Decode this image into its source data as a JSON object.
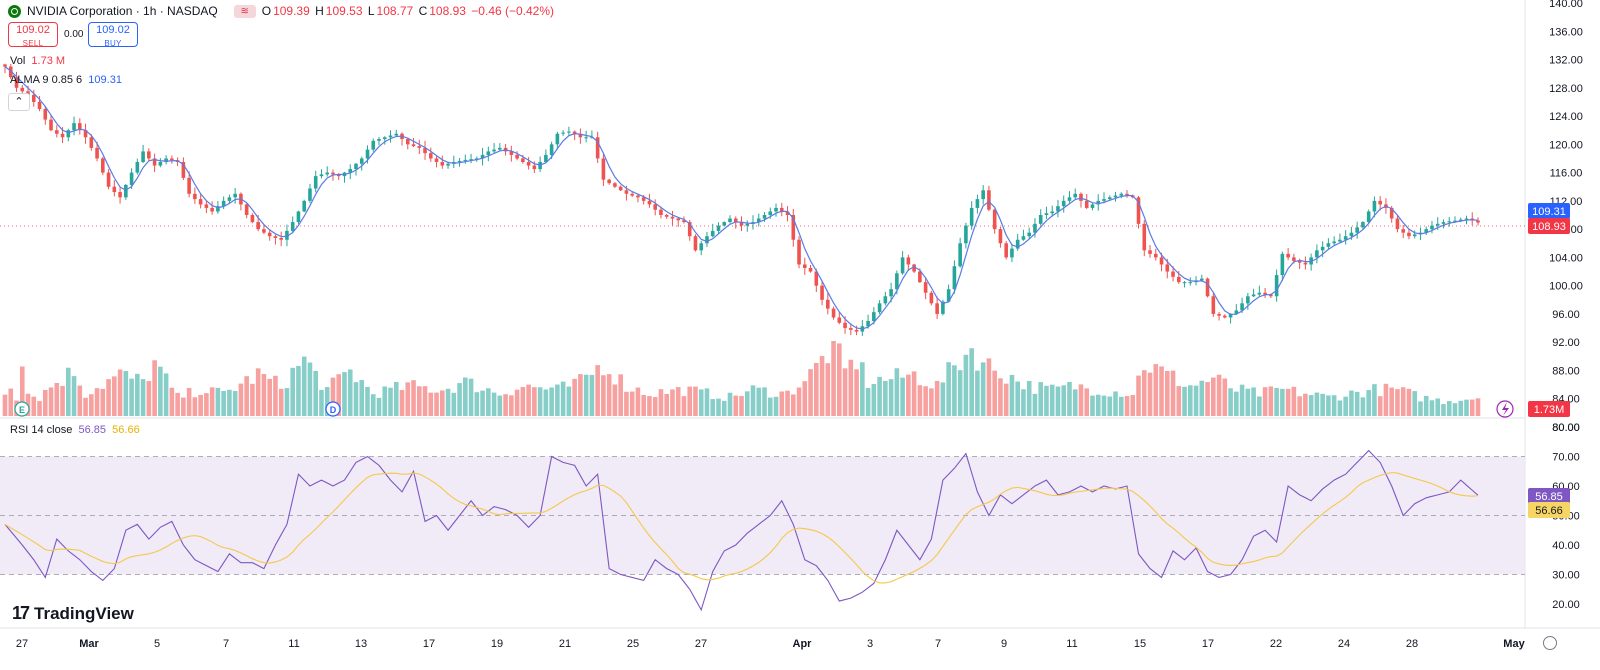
{
  "header": {
    "symbol": "NVIDIA Corporation · 1h · NASDAQ",
    "open_label": "O",
    "open": "109.39",
    "high_label": "H",
    "high": "109.53",
    "low_label": "L",
    "low": "108.77",
    "close_label": "C",
    "close": "108.93",
    "change": "−0.46 (−0.42%)"
  },
  "trade": {
    "sell_price": "109.02",
    "sell_label": "SELL",
    "spread": "0.00",
    "buy_price": "109.02",
    "buy_label": "BUY"
  },
  "volume_legend": {
    "label": "Vol",
    "value": "1.73 M"
  },
  "alma_legend": {
    "label": "ALMA 9 0.85 6",
    "value": "109.31"
  },
  "rsi_legend": {
    "label": "RSI 14 close",
    "value": "56.85",
    "ma_value": "56.66"
  },
  "branding": {
    "name": "TradingView"
  },
  "chart_data": {
    "type": "candlestick",
    "x_ticks": [
      "27",
      "Mar",
      "5",
      "7",
      "11",
      "13",
      "17",
      "19",
      "21",
      "25",
      "27",
      "Apr",
      "3",
      "7",
      "9",
      "11",
      "15",
      "17",
      "22",
      "24",
      "28",
      "May"
    ],
    "price_axis": {
      "ticks": [
        "140.00",
        "136.00",
        "132.00",
        "128.00",
        "124.00",
        "120.00",
        "116.00",
        "112.00",
        "108.00",
        "104.00",
        "100.00",
        "96.00",
        "92.00",
        "88.00",
        "84.00",
        "80.00"
      ],
      "ylim": [
        80,
        140
      ]
    },
    "rsi_axis": {
      "ticks": [
        "80.00",
        "70.00",
        "60.00",
        "50.00",
        "40.00",
        "30.00",
        "20.00"
      ],
      "ylim": [
        15,
        85
      ]
    },
    "price_labels": {
      "alma": "109.31",
      "last": "108.93",
      "volume": "1.73M"
    },
    "rsi_labels": {
      "rsi": "56.85",
      "ma": "56.66"
    },
    "event_markers": [
      "E",
      "D"
    ],
    "close_waypoints": [
      [
        0,
        131
      ],
      [
        2,
        128
      ],
      [
        4,
        127
      ],
      [
        6,
        125
      ],
      [
        8,
        122
      ],
      [
        10,
        121
      ],
      [
        12,
        123
      ],
      [
        14,
        121
      ],
      [
        16,
        118
      ],
      [
        18,
        114
      ],
      [
        20,
        112.5
      ],
      [
        22,
        116
      ],
      [
        24,
        119
      ],
      [
        26,
        117
      ],
      [
        28,
        118
      ],
      [
        30,
        117.5
      ],
      [
        32,
        113
      ],
      [
        34,
        111.5
      ],
      [
        36,
        110.5
      ],
      [
        38,
        112
      ],
      [
        40,
        113
      ],
      [
        42,
        110
      ],
      [
        44,
        108
      ],
      [
        46,
        107
      ],
      [
        48,
        106.5
      ],
      [
        50,
        109
      ],
      [
        52,
        112
      ],
      [
        54,
        115.5
      ],
      [
        56,
        116
      ],
      [
        58,
        115.5
      ],
      [
        60,
        116.5
      ],
      [
        62,
        118
      ],
      [
        64,
        120.5
      ],
      [
        66,
        121
      ],
      [
        68,
        121.5
      ],
      [
        70,
        120
      ],
      [
        72,
        119.5
      ],
      [
        74,
        118
      ],
      [
        76,
        117
      ],
      [
        78,
        117.5
      ],
      [
        80,
        117.8
      ],
      [
        82,
        118
      ],
      [
        84,
        119
      ],
      [
        86,
        119.5
      ],
      [
        88,
        118.5
      ],
      [
        90,
        117.5
      ],
      [
        92,
        116.5
      ],
      [
        94,
        118.5
      ],
      [
        96,
        121.5
      ],
      [
        98,
        121.8
      ],
      [
        100,
        121
      ],
      [
        102,
        121
      ],
      [
        104,
        115
      ],
      [
        106,
        114
      ],
      [
        108,
        113
      ],
      [
        110,
        112.5
      ],
      [
        112,
        111.5
      ],
      [
        114,
        110
      ],
      [
        116,
        109.5
      ],
      [
        118,
        109
      ],
      [
        120,
        105
      ],
      [
        122,
        107
      ],
      [
        124,
        108.5
      ],
      [
        126,
        109.5
      ],
      [
        128,
        108.5
      ],
      [
        130,
        109
      ],
      [
        132,
        110
      ],
      [
        134,
        111
      ],
      [
        136,
        110
      ],
      [
        138,
        103
      ],
      [
        140,
        102
      ],
      [
        142,
        98
      ],
      [
        144,
        95.5
      ],
      [
        146,
        94
      ],
      [
        148,
        93.5
      ],
      [
        150,
        95
      ],
      [
        152,
        97.5
      ],
      [
        154,
        99.5
      ],
      [
        156,
        104
      ],
      [
        158,
        102
      ],
      [
        160,
        99
      ],
      [
        162,
        96
      ],
      [
        164,
        99.5
      ],
      [
        166,
        106
      ],
      [
        168,
        111
      ],
      [
        170,
        113.5
      ],
      [
        172,
        108
      ],
      [
        174,
        104
      ],
      [
        176,
        106.5
      ],
      [
        178,
        107.5
      ],
      [
        180,
        110
      ],
      [
        182,
        110.5
      ],
      [
        184,
        112
      ],
      [
        186,
        113
      ],
      [
        188,
        111
      ],
      [
        190,
        112
      ],
      [
        192,
        112.5
      ],
      [
        194,
        113
      ],
      [
        196,
        112.5
      ],
      [
        198,
        105
      ],
      [
        200,
        104
      ],
      [
        202,
        102
      ],
      [
        204,
        100.5
      ],
      [
        206,
        100.5
      ],
      [
        208,
        101
      ],
      [
        210,
        96
      ],
      [
        212,
        95.5
      ],
      [
        214,
        96.5
      ],
      [
        216,
        98.5
      ],
      [
        218,
        99
      ],
      [
        220,
        98.5
      ],
      [
        222,
        104.5
      ],
      [
        224,
        103.5
      ],
      [
        226,
        103
      ],
      [
        228,
        105
      ],
      [
        230,
        106
      ],
      [
        232,
        106.5
      ],
      [
        234,
        107.5
      ],
      [
        236,
        109
      ],
      [
        238,
        112
      ],
      [
        240,
        111
      ],
      [
        242,
        108
      ],
      [
        244,
        107
      ],
      [
        246,
        107.5
      ],
      [
        248,
        108.5
      ],
      [
        250,
        109
      ],
      [
        252,
        109.2
      ],
      [
        254,
        109.5
      ],
      [
        256,
        108.93
      ]
    ],
    "volume_waypoints": [
      [
        0,
        0.3
      ],
      [
        1,
        0.45
      ],
      [
        2,
        0.25
      ],
      [
        3,
        0.85
      ],
      [
        4,
        0.3
      ],
      [
        6,
        0.25
      ],
      [
        8,
        0.4
      ],
      [
        12,
        0.6
      ],
      [
        14,
        0.3
      ],
      [
        20,
        0.55
      ],
      [
        24,
        0.45
      ],
      [
        26,
        0.7
      ],
      [
        30,
        0.25
      ],
      [
        34,
        0.35
      ],
      [
        38,
        0.3
      ],
      [
        44,
        0.55
      ],
      [
        48,
        0.4
      ],
      [
        52,
        0.75
      ],
      [
        56,
        0.35
      ],
      [
        60,
        0.6
      ],
      [
        64,
        0.3
      ],
      [
        70,
        0.4
      ],
      [
        76,
        0.35
      ],
      [
        80,
        0.45
      ],
      [
        86,
        0.3
      ],
      [
        90,
        0.4
      ],
      [
        96,
        0.35
      ],
      [
        100,
        0.45
      ],
      [
        104,
        0.7
      ],
      [
        108,
        0.4
      ],
      [
        112,
        0.3
      ],
      [
        118,
        0.35
      ],
      [
        122,
        0.3
      ],
      [
        126,
        0.25
      ],
      [
        130,
        0.35
      ],
      [
        136,
        0.3
      ],
      [
        140,
        0.55
      ],
      [
        144,
        0.95
      ],
      [
        146,
        0.6
      ],
      [
        148,
        0.75
      ],
      [
        150,
        0.45
      ],
      [
        154,
        0.5
      ],
      [
        158,
        0.55
      ],
      [
        162,
        0.4
      ],
      [
        166,
        0.75
      ],
      [
        168,
        0.9
      ],
      [
        170,
        0.7
      ],
      [
        174,
        0.55
      ],
      [
        178,
        0.4
      ],
      [
        182,
        0.35
      ],
      [
        186,
        0.4
      ],
      [
        190,
        0.35
      ],
      [
        196,
        0.3
      ],
      [
        198,
        0.7
      ],
      [
        202,
        0.55
      ],
      [
        206,
        0.4
      ],
      [
        210,
        0.5
      ],
      [
        214,
        0.35
      ],
      [
        218,
        0.3
      ],
      [
        222,
        0.35
      ],
      [
        226,
        0.3
      ],
      [
        230,
        0.25
      ],
      [
        234,
        0.3
      ],
      [
        238,
        0.35
      ],
      [
        242,
        0.35
      ],
      [
        246,
        0.25
      ],
      [
        250,
        0.2
      ],
      [
        256,
        0.25
      ]
    ],
    "rsi_waypoints": [
      [
        0,
        47
      ],
      [
        3,
        40
      ],
      [
        5,
        35
      ],
      [
        7,
        29
      ],
      [
        9,
        42
      ],
      [
        11,
        38
      ],
      [
        13,
        35
      ],
      [
        15,
        31
      ],
      [
        17,
        28
      ],
      [
        19,
        32
      ],
      [
        21,
        45
      ],
      [
        23,
        47
      ],
      [
        25,
        42
      ],
      [
        27,
        46
      ],
      [
        29,
        48
      ],
      [
        31,
        40
      ],
      [
        33,
        35
      ],
      [
        35,
        33
      ],
      [
        37,
        31
      ],
      [
        39,
        37
      ],
      [
        41,
        34
      ],
      [
        43,
        34
      ],
      [
        45,
        32
      ],
      [
        47,
        40
      ],
      [
        49,
        47
      ],
      [
        51,
        64
      ],
      [
        53,
        60
      ],
      [
        55,
        62
      ],
      [
        57,
        60
      ],
      [
        59,
        62
      ],
      [
        61,
        68
      ],
      [
        63,
        70
      ],
      [
        65,
        67
      ],
      [
        67,
        62
      ],
      [
        69,
        58
      ],
      [
        71,
        65
      ],
      [
        73,
        48
      ],
      [
        75,
        50
      ],
      [
        77,
        45
      ],
      [
        79,
        50
      ],
      [
        81,
        55
      ],
      [
        83,
        50
      ],
      [
        85,
        53
      ],
      [
        87,
        52
      ],
      [
        89,
        50
      ],
      [
        91,
        46
      ],
      [
        93,
        50
      ],
      [
        95,
        70
      ],
      [
        97,
        68
      ],
      [
        99,
        67
      ],
      [
        101,
        60
      ],
      [
        103,
        64
      ],
      [
        105,
        32
      ],
      [
        107,
        30
      ],
      [
        109,
        29
      ],
      [
        111,
        28
      ],
      [
        113,
        35
      ],
      [
        115,
        32
      ],
      [
        117,
        30
      ],
      [
        119,
        25
      ],
      [
        121,
        18
      ],
      [
        123,
        31
      ],
      [
        125,
        38
      ],
      [
        127,
        40
      ],
      [
        129,
        44
      ],
      [
        131,
        47
      ],
      [
        133,
        50
      ],
      [
        135,
        55
      ],
      [
        137,
        47
      ],
      [
        139,
        35
      ],
      [
        141,
        33
      ],
      [
        143,
        28
      ],
      [
        145,
        21
      ],
      [
        147,
        22
      ],
      [
        149,
        24
      ],
      [
        151,
        27
      ],
      [
        153,
        35
      ],
      [
        155,
        45
      ],
      [
        157,
        40
      ],
      [
        159,
        35
      ],
      [
        161,
        42
      ],
      [
        163,
        62
      ],
      [
        165,
        66
      ],
      [
        167,
        71
      ],
      [
        169,
        58
      ],
      [
        171,
        50
      ],
      [
        173,
        57
      ],
      [
        175,
        54
      ],
      [
        177,
        57
      ],
      [
        179,
        60
      ],
      [
        181,
        62
      ],
      [
        183,
        57
      ],
      [
        185,
        58
      ],
      [
        187,
        60
      ],
      [
        189,
        58
      ],
      [
        191,
        60
      ],
      [
        193,
        59
      ],
      [
        195,
        60
      ],
      [
        197,
        37
      ],
      [
        199,
        32
      ],
      [
        201,
        29
      ],
      [
        203,
        38
      ],
      [
        205,
        35
      ],
      [
        207,
        39
      ],
      [
        209,
        31
      ],
      [
        211,
        29
      ],
      [
        213,
        30
      ],
      [
        215,
        35
      ],
      [
        217,
        43
      ],
      [
        219,
        45
      ],
      [
        221,
        41
      ],
      [
        223,
        60
      ],
      [
        225,
        57
      ],
      [
        227,
        55
      ],
      [
        229,
        59
      ],
      [
        231,
        62
      ],
      [
        233,
        64
      ],
      [
        235,
        68
      ],
      [
        237,
        72
      ],
      [
        239,
        68
      ],
      [
        241,
        60
      ],
      [
        243,
        50
      ],
      [
        245,
        54
      ],
      [
        247,
        56
      ],
      [
        249,
        57
      ],
      [
        251,
        58
      ],
      [
        253,
        62
      ],
      [
        256,
        56.85
      ]
    ],
    "rsi_ma_period": 14,
    "rsi_bands": {
      "upper": 70,
      "middle": 50,
      "lower": 30
    },
    "colors": {
      "up": "#26a69a",
      "down": "#ef5350",
      "alma": "#5b7be6",
      "rsi": "#7e57c2",
      "rsi_ma": "#f5c84c",
      "band_fill": "#ede7f6",
      "alma_label": "#2962ff",
      "last_label": "#f23645"
    }
  }
}
